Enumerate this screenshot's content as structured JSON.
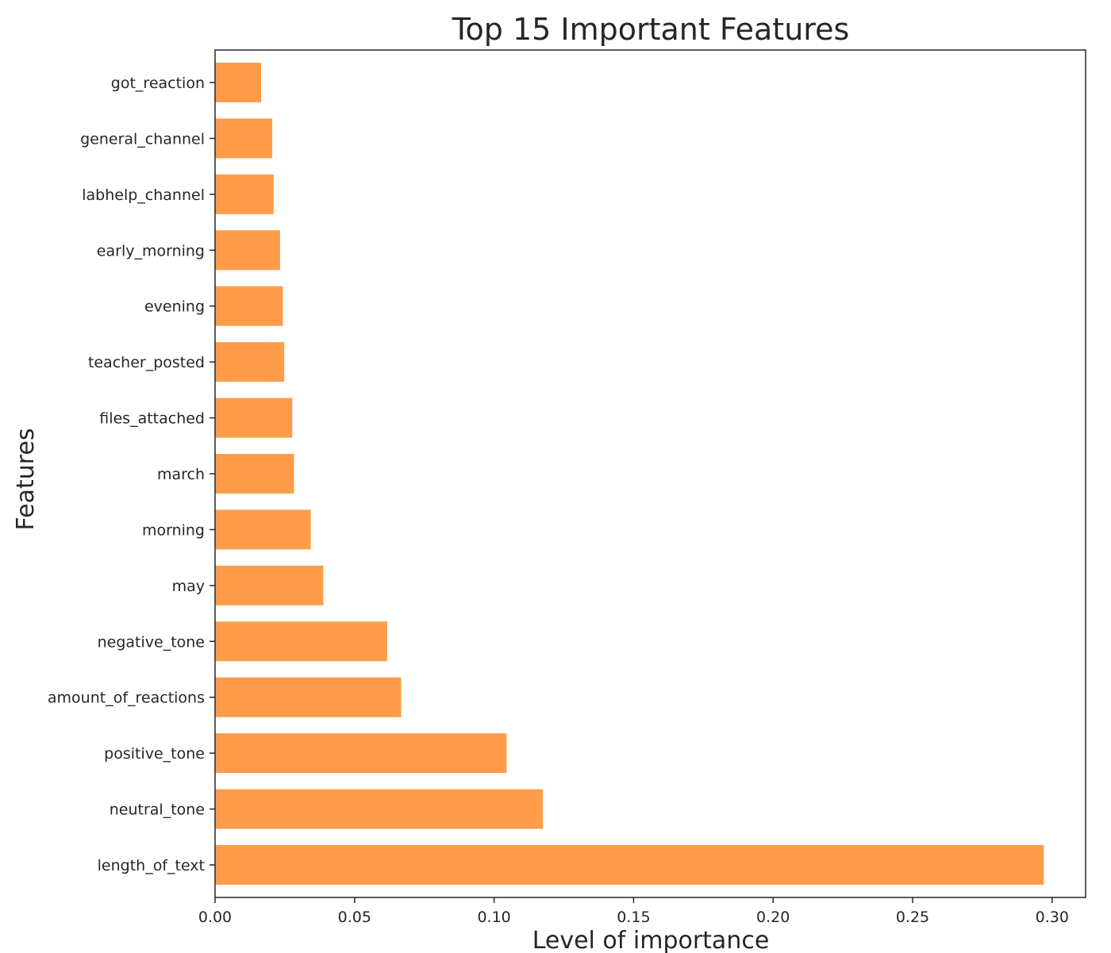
{
  "chart_data": {
    "type": "bar",
    "orientation": "horizontal",
    "title": "Top 15 Important Features",
    "xlabel": "Level of importance",
    "ylabel": "Features",
    "categories": [
      "got_reaction",
      "general_channel",
      "labhelp_channel",
      "early_morning",
      "evening",
      "teacher_posted",
      "files_attached",
      "march",
      "morning",
      "may",
      "negative_tone",
      "amount_of_reactions",
      "positive_tone",
      "neutral_tone",
      "length_of_text"
    ],
    "values": [
      0.0165,
      0.0205,
      0.021,
      0.0233,
      0.0243,
      0.0248,
      0.0277,
      0.0283,
      0.0343,
      0.0388,
      0.0617,
      0.0667,
      0.1045,
      0.1175,
      0.297
    ],
    "xlim": [
      0.0,
      0.312
    ],
    "xticks": [
      "0.00",
      "0.05",
      "0.10",
      "0.15",
      "0.20",
      "0.25",
      "0.30"
    ],
    "bar_color": "#fe9c4a",
    "grid": false,
    "legend": "none"
  }
}
